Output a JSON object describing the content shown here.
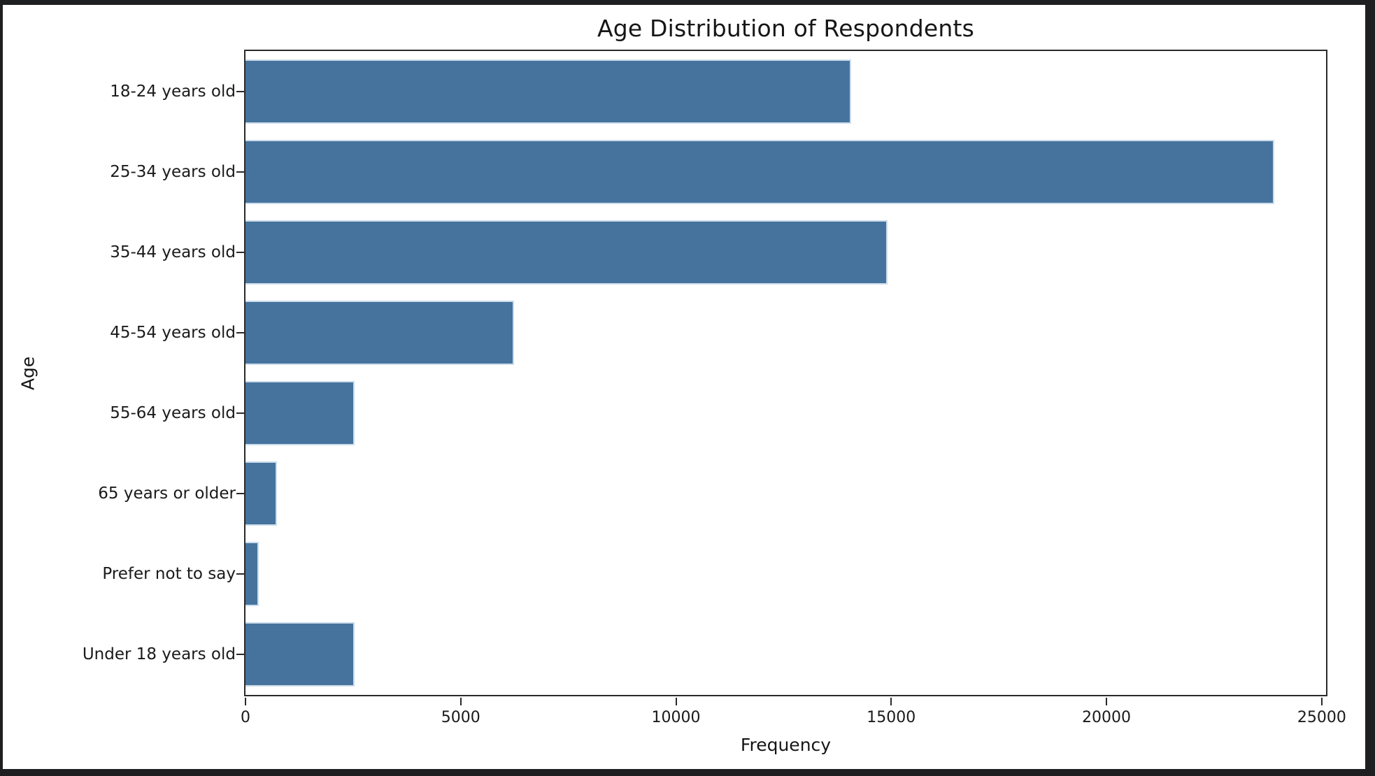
{
  "window": {
    "outer_background": "#1e1f20",
    "figure_background": "#ffffff"
  },
  "chart_data": {
    "type": "bar",
    "orientation": "horizontal",
    "title": "Age Distribution of Respondents",
    "xlabel": "Frequency",
    "ylabel": "Age",
    "categories": [
      "18-24 years old",
      "25-34 years old",
      "35-44 years old",
      "45-54 years old",
      "55-64 years old",
      "65 years or older",
      "Prefer not to say",
      "Under 18 years old"
    ],
    "values": [
      14070,
      23900,
      14910,
      6240,
      2540,
      730,
      310,
      2540
    ],
    "xlim": [
      0,
      25100
    ],
    "xticks": [
      {
        "value": 0,
        "label": "0"
      },
      {
        "value": 5000,
        "label": "5000"
      },
      {
        "value": 10000,
        "label": "10000"
      },
      {
        "value": 15000,
        "label": "15000"
      },
      {
        "value": 20000,
        "label": "20000"
      },
      {
        "value": 25000,
        "label": "25000"
      }
    ],
    "bar_color": "#45739e",
    "bar_edge_color": "#ccdcea",
    "bar_height_fraction": 0.8,
    "grid": false,
    "legend": null
  }
}
